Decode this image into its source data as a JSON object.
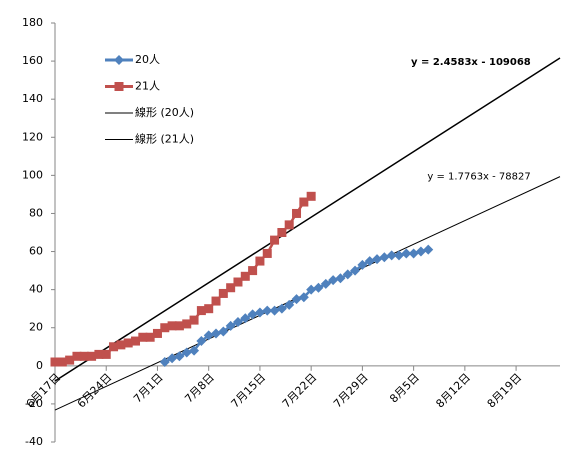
{
  "chart_data": {
    "type": "line",
    "xlim": [
      44364,
      44433
    ],
    "ylim": [
      -40,
      180
    ],
    "yticks": [
      -40,
      -20,
      0,
      20,
      40,
      60,
      80,
      100,
      120,
      140,
      160,
      180
    ],
    "xticks": [
      {
        "value": 44364,
        "label": "6月17日"
      },
      {
        "value": 44371,
        "label": "6月24日"
      },
      {
        "value": 44378,
        "label": "7月1日"
      },
      {
        "value": 44385,
        "label": "7月8日"
      },
      {
        "value": 44392,
        "label": "7月15日"
      },
      {
        "value": 44399,
        "label": "7月22日"
      },
      {
        "value": 44406,
        "label": "7月29日"
      },
      {
        "value": 44413,
        "label": "8月5日"
      },
      {
        "value": 44420,
        "label": "8月12日"
      },
      {
        "value": 44427,
        "label": "8月19日"
      }
    ],
    "legend": "upper left",
    "series": [
      {
        "name": "20人",
        "color": "#4f81bd",
        "marker": "diamond",
        "x": [
          44379,
          44380,
          44381,
          44382,
          44383,
          44384,
          44385,
          44386,
          44387,
          44388,
          44389,
          44390,
          44391,
          44392,
          44393,
          44394,
          44395,
          44396,
          44397,
          44398,
          44399,
          44400,
          44401,
          44402,
          44403,
          44404,
          44405,
          44406,
          44407,
          44408,
          44409,
          44410,
          44411,
          44412,
          44413,
          44414,
          44415
        ],
        "values": [
          2,
          4,
          5,
          7,
          8,
          13,
          16,
          17,
          18,
          21,
          23,
          25,
          27,
          28,
          29,
          29,
          30,
          32,
          35,
          36,
          40,
          41,
          43,
          45,
          46,
          48,
          50,
          53,
          55,
          56,
          57,
          58,
          58,
          59,
          59,
          60,
          61
        ]
      },
      {
        "name": "21人",
        "color": "#c0504d",
        "marker": "square",
        "x": [
          44364,
          44365,
          44366,
          44367,
          44368,
          44369,
          44370,
          44371,
          44372,
          44373,
          44374,
          44375,
          44376,
          44377,
          44378,
          44379,
          44380,
          44381,
          44382,
          44383,
          44384,
          44385,
          44386,
          44387,
          44388,
          44389,
          44390,
          44391,
          44392,
          44393,
          44394,
          44395,
          44396,
          44397,
          44398,
          44399
        ],
        "values": [
          2,
          2,
          3,
          5,
          5,
          5,
          6,
          6,
          10,
          11,
          12,
          13,
          15,
          15,
          17,
          20,
          21,
          21,
          22,
          24,
          29,
          30,
          34,
          38,
          41,
          44,
          47,
          50,
          55,
          59,
          66,
          70,
          74,
          80,
          86,
          89
        ]
      }
    ],
    "trendlines": [
      {
        "name": "線形 (20人)",
        "color": "#000000",
        "slope": 1.7763,
        "intercept": -78827,
        "equation": "y = 1.7763x - 78827",
        "bold": false
      },
      {
        "name": "線形 (21人)",
        "color": "#000000",
        "slope": 2.4583,
        "intercept": -109068,
        "equation": "y = 2.4583x - 109068",
        "bold": true
      }
    ]
  }
}
